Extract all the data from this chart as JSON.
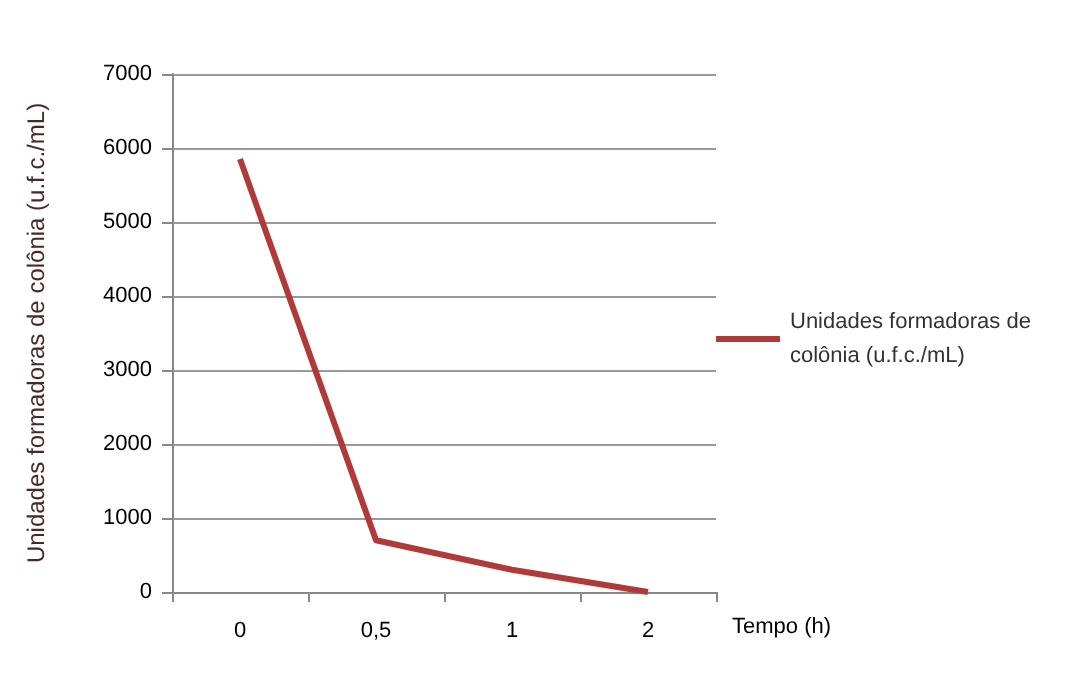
{
  "chart_data": {
    "type": "line",
    "xlabel": "Tempo (h)",
    "ylabel": "Unidades formadoras de colônia (u.f.c./mL)",
    "categories": [
      "0",
      "0,5",
      "1",
      "2"
    ],
    "series": [
      {
        "name": "Unidades formadoras de colônia (u.f.c./mL)",
        "color": "#b03a3a",
        "values": [
          5850,
          700,
          300,
          0
        ]
      }
    ],
    "ylim": [
      0,
      7000
    ],
    "yticks": [
      0,
      1000,
      2000,
      3000,
      4000,
      5000,
      6000,
      7000
    ],
    "grid": "y",
    "legend": "right",
    "marker": "none",
    "line_style": "solid"
  }
}
